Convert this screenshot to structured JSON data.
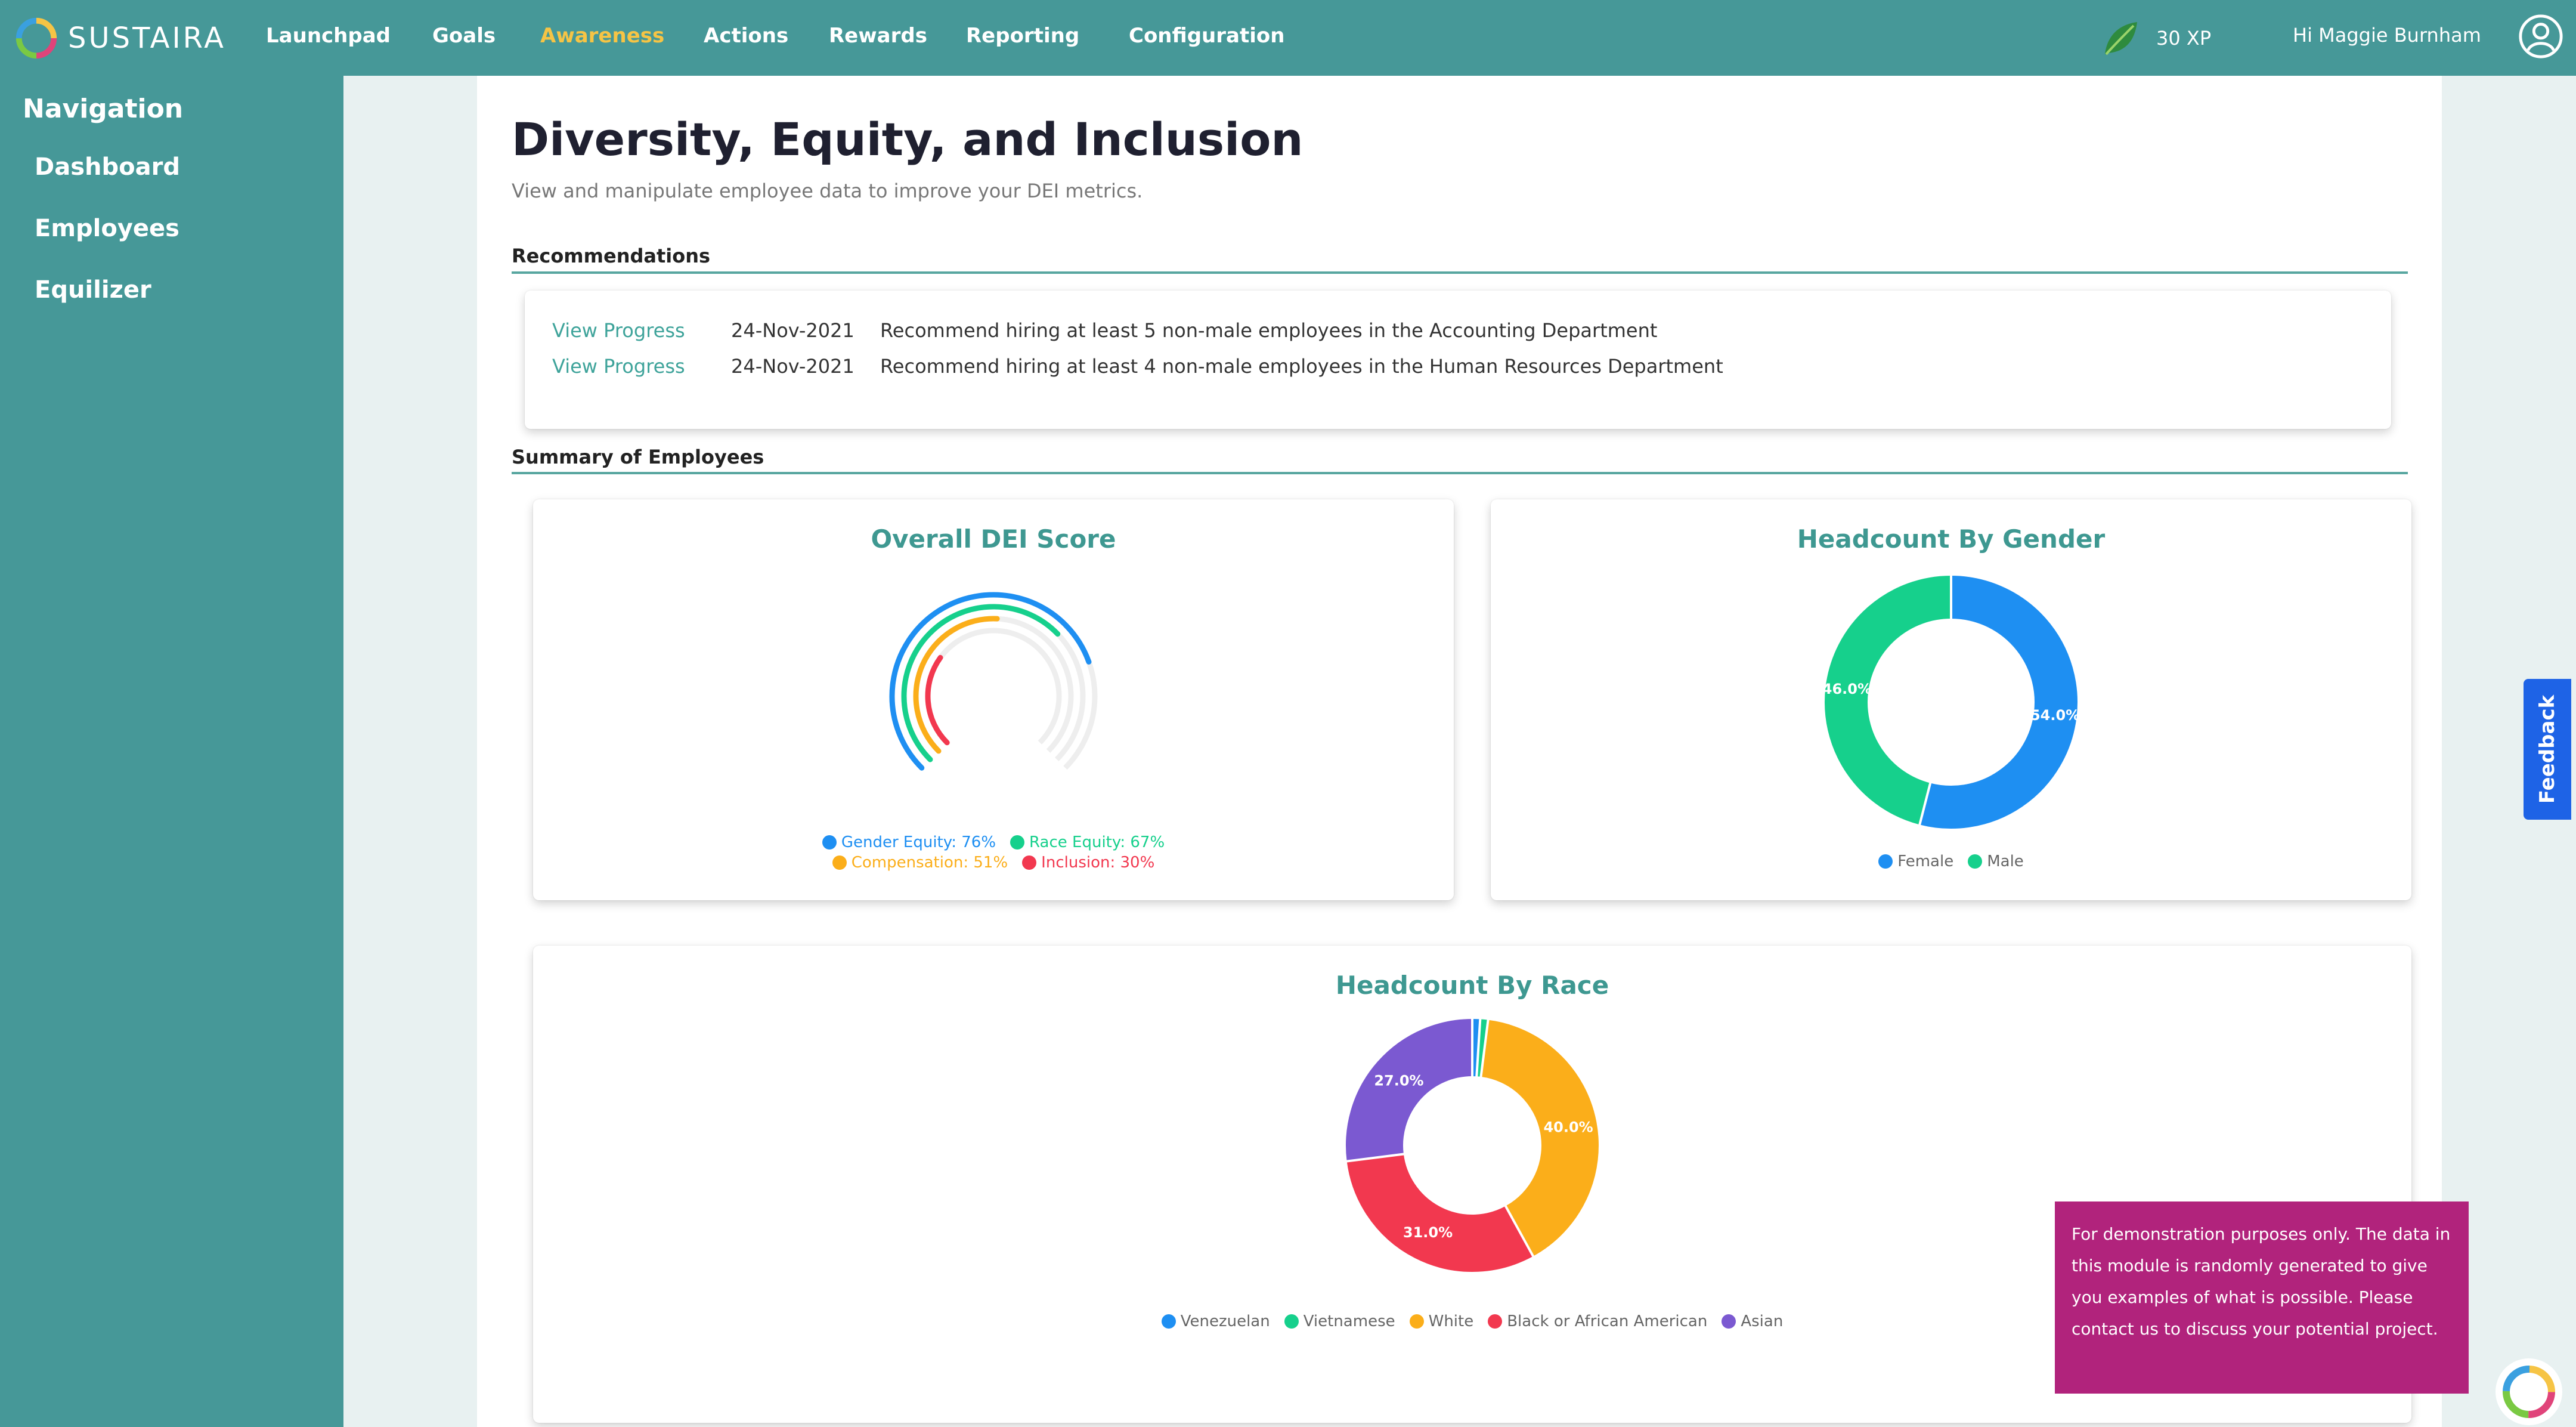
{
  "app": {
    "name": "SUSTAIRA"
  },
  "topnav": {
    "items": [
      "Launchpad",
      "Goals",
      "Awareness",
      "Actions",
      "Rewards",
      "Reporting",
      "Configuration"
    ],
    "active": "Awareness",
    "xp": "30 XP",
    "greeting": "Hi Maggie Burnham"
  },
  "sidebar": {
    "heading": "Navigation",
    "items": [
      "Dashboard",
      "Employees",
      "Equilizer"
    ]
  },
  "page": {
    "title": "Diversity, Equity, and Inclusion",
    "subtitle": "View and manipulate employee data to improve your DEI metrics."
  },
  "recommendations": {
    "label": "Recommendations",
    "rows": [
      {
        "link": "View Progress",
        "date": "24-Nov-2021",
        "text": "Recommend hiring at least 5 non-male employees in the Accounting Department"
      },
      {
        "link": "View Progress",
        "date": "24-Nov-2021",
        "text": "Recommend hiring at least 4 non-male employees in the Human Resources Department"
      }
    ]
  },
  "summary": {
    "label": "Summary of Employees"
  },
  "chart_data": [
    {
      "type": "radialBar",
      "title": "Overall DEI Score",
      "series": [
        {
          "name": "Gender Equity",
          "value": 76,
          "legend": "Gender Equity: 76%",
          "color": "#1e8ff2"
        },
        {
          "name": "Race Equity",
          "value": 67,
          "legend": "Race Equity: 67%",
          "color": "#16d08c"
        },
        {
          "name": "Compensation",
          "value": 51,
          "legend": "Compensation: 51%",
          "color": "#fbae1a"
        },
        {
          "name": "Inclusion",
          "value": 30,
          "legend": "Inclusion: 30%",
          "color": "#f2384f"
        }
      ],
      "legend_position": "bottom"
    },
    {
      "type": "donut",
      "title": "Headcount By Gender",
      "slices": [
        {
          "name": "Female",
          "value": 54.0,
          "label": "54.0%",
          "color": "#1e8ff2"
        },
        {
          "name": "Male",
          "value": 46.0,
          "label": "46.0%",
          "color": "#16d08c"
        }
      ],
      "legend_position": "bottom"
    },
    {
      "type": "donut",
      "title": "Headcount By Race",
      "slices": [
        {
          "name": "Venezuelan",
          "value": 1.0,
          "label": "",
          "color": "#1e8ff2"
        },
        {
          "name": "Vietnamese",
          "value": 1.0,
          "label": "",
          "color": "#16d08c"
        },
        {
          "name": "White",
          "value": 40.0,
          "label": "40.0%",
          "color": "#fbae1a"
        },
        {
          "name": "Black or African American",
          "value": 31.0,
          "label": "31.0%",
          "color": "#f2384f"
        },
        {
          "name": "Asian",
          "value": 27.0,
          "label": "27.0%",
          "color": "#7b59d1"
        }
      ],
      "legend_position": "bottom"
    }
  ],
  "feedback": {
    "label": "Feedback"
  },
  "toast": {
    "text": "For demonstration purposes only. The data in this module is randomly generated to give you examples of what is possible. Please contact us to discuss your potential project."
  },
  "colors": {
    "brand": "#469898",
    "active_nav": "#f6c445",
    "link": "#3ea39a",
    "toast": "#b1237c",
    "feedback": "#1e63e6"
  }
}
